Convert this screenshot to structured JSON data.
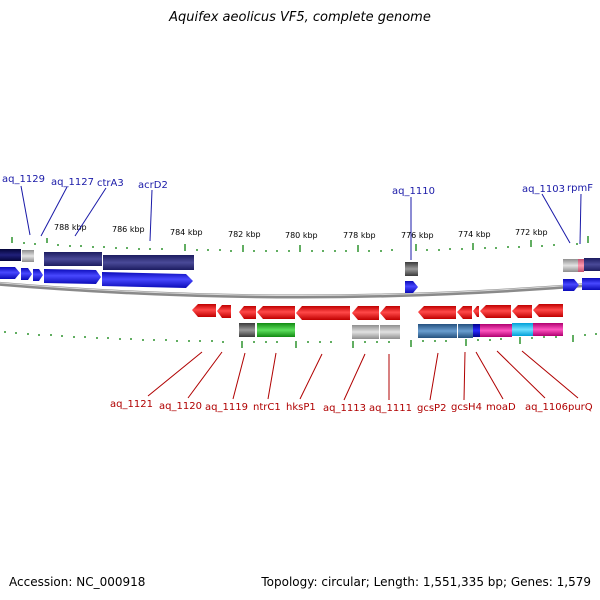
{
  "title": "Aquifex aeolicus VF5, complete genome",
  "footer": {
    "accession": "Accession: NC_000918",
    "summary": "Topology: circular; Length: 1,551,335 bp; Genes: 1,579"
  },
  "colors": {
    "forward_gene": "#1616e0",
    "reverse_gene": "#e81818",
    "top_label": "#1a1aa8",
    "bottom_label": "#b00000",
    "tick": "#1e8c1e",
    "backbone": "#8a8a8a"
  },
  "scale_labels": [
    "788 kbp",
    "786 kbp",
    "784 kbp",
    "782 kbp",
    "780 kbp",
    "778 kbp",
    "776 kbp",
    "774 kbp",
    "772 kbp"
  ],
  "top_labels": [
    "aq_1129",
    "aq_1127",
    "ctrA3",
    "acrD2",
    "aq_1110",
    "aq_1103",
    "rpmF"
  ],
  "bottom_labels": [
    "aq_1121",
    "aq_1120",
    "aq_1119",
    "ntrC1",
    "hksP1",
    "aq_1113",
    "aq_1111",
    "gcsP2",
    "gcsH4",
    "moaD",
    "aq_1106",
    "purQ"
  ]
}
